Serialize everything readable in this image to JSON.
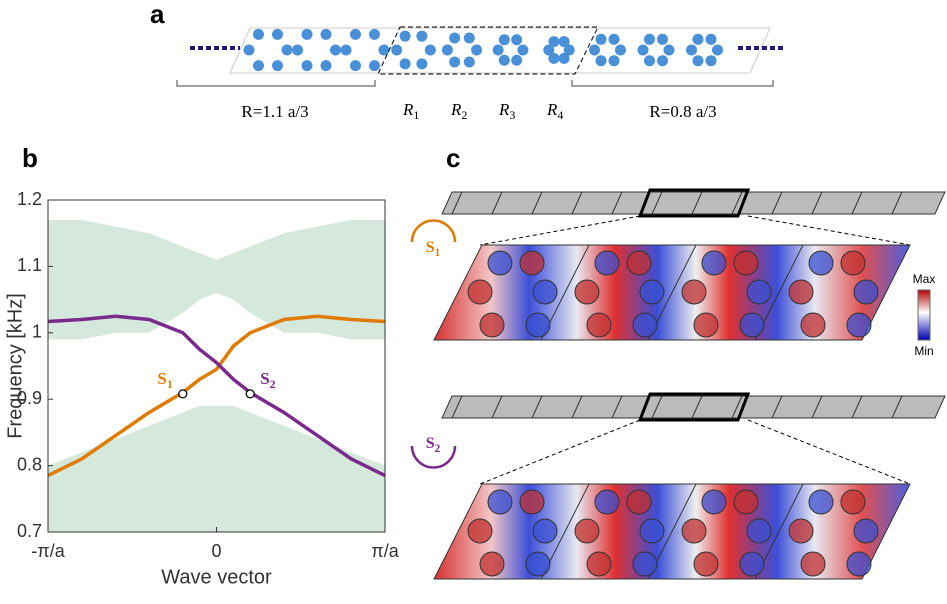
{
  "panel_labels": [
    "a",
    "b",
    "c"
  ],
  "panel_a": {
    "left_label": "R=1.1 a/3",
    "right_label": "R=0.8 a/3",
    "regions": [
      {
        "main": "R",
        "sub": "1"
      },
      {
        "main": "R",
        "sub": "2"
      },
      {
        "main": "R",
        "sub": "3"
      },
      {
        "main": "R",
        "sub": "4"
      }
    ]
  },
  "chart_data": {
    "type": "line",
    "xlabel": "Wave vector",
    "ylabel": "Frequency [kHz]",
    "xlim": [
      -1,
      1
    ],
    "ylim": [
      0.7,
      1.2
    ],
    "xticks": [
      {
        "value": -1,
        "label": "-π/a"
      },
      0,
      {
        "value": 1,
        "label": "π/a"
      }
    ],
    "yticks": [
      0.7,
      0.8,
      0.9,
      1,
      1.1,
      1.2
    ],
    "x": [
      -1,
      -0.8,
      -0.6,
      -0.4,
      -0.2,
      -0.1,
      0,
      0.1,
      0.2,
      0.4,
      0.6,
      0.8,
      1
    ],
    "bands": [
      {
        "color": "#d5e8dc",
        "lower": [
          0.99,
          0.99,
          1.0,
          1.0,
          1.03,
          1.05,
          1.06,
          1.05,
          1.03,
          1.0,
          1.0,
          0.99,
          0.99
        ],
        "upper": [
          1.17,
          1.17,
          1.16,
          1.15,
          1.13,
          1.12,
          1.11,
          1.12,
          1.13,
          1.15,
          1.16,
          1.17,
          1.17
        ]
      },
      {
        "color": "#d5e8dc",
        "lower": [
          0.7,
          0.7,
          0.7,
          0.7,
          0.7,
          0.7,
          0.7,
          0.7,
          0.7,
          0.7,
          0.7,
          0.7,
          0.7
        ],
        "upper": [
          0.8,
          0.82,
          0.84,
          0.86,
          0.88,
          0.89,
          0.89,
          0.89,
          0.88,
          0.86,
          0.84,
          0.82,
          0.8
        ]
      }
    ],
    "series": [
      {
        "color": "#e07b00",
        "values": [
          0.785,
          0.81,
          0.845,
          0.88,
          0.91,
          0.93,
          0.945,
          0.98,
          1.0,
          1.02,
          1.025,
          1.02,
          1.017
        ]
      },
      {
        "color": "#7a2a8c",
        "values": [
          1.017,
          1.02,
          1.025,
          1.02,
          1.0,
          0.975,
          0.955,
          0.93,
          0.91,
          0.88,
          0.845,
          0.81,
          0.785
        ]
      }
    ],
    "annotations": [
      {
        "main": "S",
        "sub": "1",
        "x": -0.2,
        "y": 0.908,
        "color": "#e07b00"
      },
      {
        "main": "S",
        "sub": "2",
        "x": 0.2,
        "y": 0.908,
        "color": "#7a2a8c"
      }
    ]
  },
  "panel_c": {
    "modes": [
      {
        "main": "S",
        "sub": "1",
        "color": "#e07b00"
      },
      {
        "main": "S",
        "sub": "2",
        "color": "#7a2a8c"
      }
    ],
    "colorbar": {
      "max": "Max",
      "min": "Min"
    }
  }
}
